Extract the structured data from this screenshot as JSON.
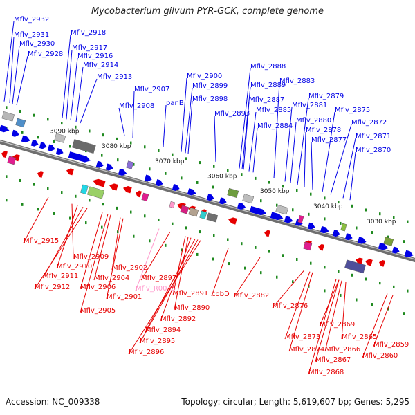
{
  "title": "Mycobacterium gilvum PYR-GCK, complete genome",
  "footer": {
    "accession": "Accession: NC_009338",
    "topology": "Topology: circular; Length: 5,619,607 bp; Genes: 5,295"
  },
  "colors": {
    "forward": "#0000e6",
    "reverse": "#e60000",
    "rna": "#ff99cc",
    "backbone": "#8c8c8c",
    "tick": "#1f8a1f"
  },
  "scale_labels": [
    "3090 kbp",
    "3080 kbp",
    "3070 kbp",
    "3060 kbp",
    "3050 kbp",
    "3040 kbp",
    "3030 kbp"
  ],
  "top_labels": [
    "Mflv_2932",
    "Mflv_2931",
    "Mflv_2930",
    "Mflv_2928",
    "Mflv_2918",
    "Mflv_2917",
    "Mflv_2916",
    "Mflv_2914",
    "Mflv_2913",
    "Mflv_2907",
    "Mflv_2908",
    "panB",
    "Mflv_2900",
    "Mflv_2899",
    "Mflv_2898",
    "Mflv_2893",
    "Mflv_2888",
    "Mflv_2889",
    "Mflv_2887",
    "Mflv_2885",
    "Mflv_2884",
    "Mflv_2883",
    "Mflv_2881",
    "Mflv_2880",
    "Mflv_2879",
    "Mflv_2878",
    "Mflv_2877",
    "Mflv_2875",
    "Mflv_2872",
    "Mflv_2871",
    "Mflv_2870"
  ],
  "bottom_labels": [
    "Mflv_2915",
    "Mflv_2909",
    "Mflv_2910",
    "Mflv_2911",
    "Mflv_2912",
    "Mflv_2906",
    "Mflv_2905",
    "Mflv_2904",
    "Mflv_2902",
    "Mflv_2901",
    "Mflv_R0035",
    "Mflv_2897",
    "Mflv_2891",
    "Mflv_2890",
    "Mflv_2892",
    "Mflv_2894",
    "Mflv_2895",
    "Mflv_2896",
    "cobD",
    "Mflv_2882",
    "Mflv_2876",
    "Mflv_2873",
    "Mflv_2874",
    "Mflv_2869",
    "Mflv_2865",
    "Mflv_2866",
    "Mflv_2867",
    "Mflv_2868",
    "Mflv_2859",
    "Mflv_2860"
  ]
}
